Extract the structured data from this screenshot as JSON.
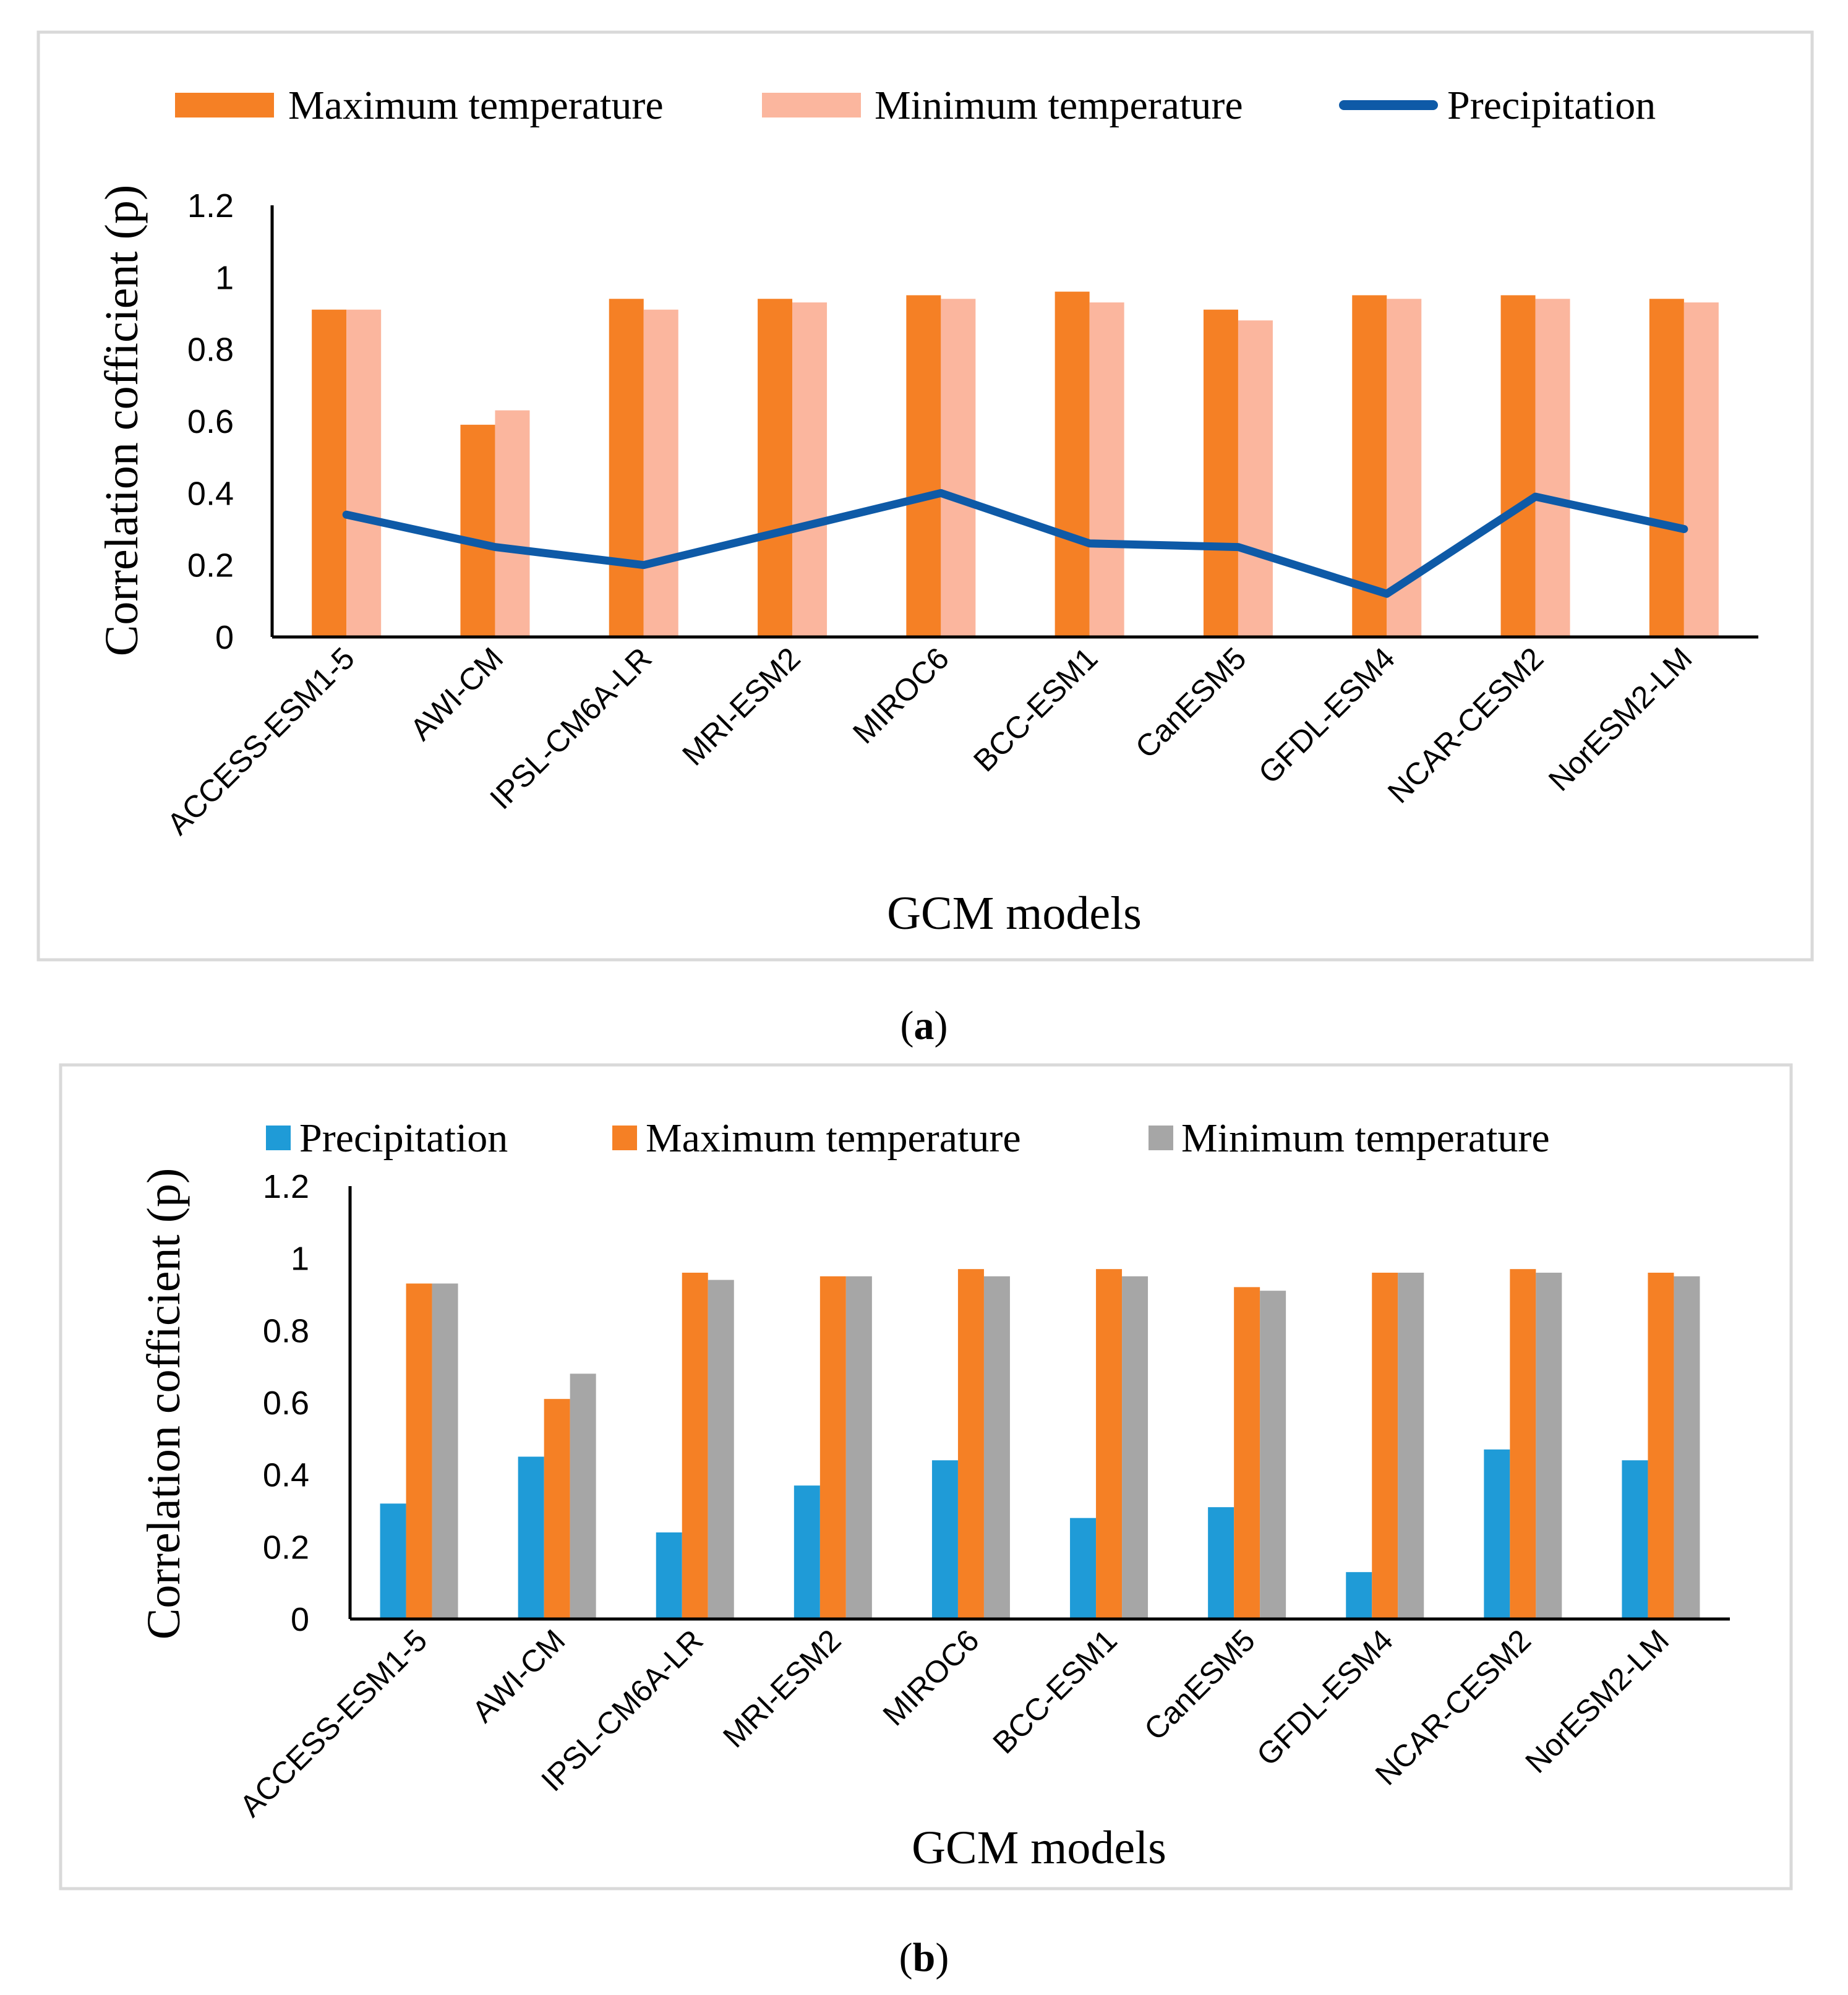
{
  "chart_data": [
    {
      "panel": "a",
      "caption": "(a)",
      "caption_letter": "a",
      "type": "bar",
      "categories": [
        "ACCESS-ESM1-5",
        "AWI-CM",
        "IPSL-CM6A-LR",
        "MRI-ESM2",
        "MIROC6",
        "BCC-ESM1",
        "CanESM5",
        "GFDL-ESM4",
        "NCAR-CESM2",
        "NorESM2-LM"
      ],
      "series": [
        {
          "name": "Maximum temperature",
          "type": "bar",
          "color": "#F58025",
          "values": [
            0.91,
            0.59,
            0.94,
            0.94,
            0.95,
            0.96,
            0.91,
            0.95,
            0.95,
            0.94
          ]
        },
        {
          "name": "Minimum temperature",
          "type": "bar",
          "color": "#FBB69E",
          "values": [
            0.91,
            0.63,
            0.91,
            0.93,
            0.94,
            0.93,
            0.88,
            0.94,
            0.94,
            0.93
          ]
        },
        {
          "name": "Precipitation",
          "type": "line",
          "color": "#0E5AA7",
          "values": [
            0.34,
            0.25,
            0.2,
            0.3,
            0.4,
            0.26,
            0.25,
            0.12,
            0.39,
            0.3
          ]
        }
      ],
      "xlabel": "GCM models",
      "ylabel": "Correlation cofficient (p)",
      "ylim": [
        0,
        1.2
      ],
      "yticks": [
        "0",
        "0.2",
        "0.4",
        "0.6",
        "0.8",
        "1",
        "1.2"
      ],
      "legend_position": "top"
    },
    {
      "panel": "b",
      "caption": "(b)",
      "caption_letter": "b",
      "type": "bar",
      "categories": [
        "ACCESS-ESM1-5",
        "AWI-CM",
        "IPSL-CM6A-LR",
        "MRI-ESM2",
        "MIROC6",
        "BCC-ESM1",
        "CanESM5",
        "GFDL-ESM4",
        "NCAR-CESM2",
        "NorESM2-LM"
      ],
      "series": [
        {
          "name": "Precipitation",
          "type": "bar",
          "color": "#1F9BD7",
          "values": [
            0.32,
            0.45,
            0.24,
            0.37,
            0.44,
            0.28,
            0.31,
            0.13,
            0.47,
            0.44
          ]
        },
        {
          "name": "Maximum temperature",
          "type": "bar",
          "color": "#F58025",
          "values": [
            0.93,
            0.61,
            0.96,
            0.95,
            0.97,
            0.97,
            0.92,
            0.96,
            0.97,
            0.96
          ]
        },
        {
          "name": "Minimum temperature",
          "type": "bar",
          "color": "#A6A6A6",
          "values": [
            0.93,
            0.68,
            0.94,
            0.95,
            0.95,
            0.95,
            0.91,
            0.96,
            0.96,
            0.95
          ]
        }
      ],
      "xlabel": "GCM models",
      "ylabel": "Correlation cofficient (p)",
      "ylim": [
        0,
        1.2
      ],
      "yticks": [
        "0",
        "0.2",
        "0.4",
        "0.6",
        "0.8",
        "1",
        "1.2"
      ],
      "legend_position": "top"
    }
  ]
}
